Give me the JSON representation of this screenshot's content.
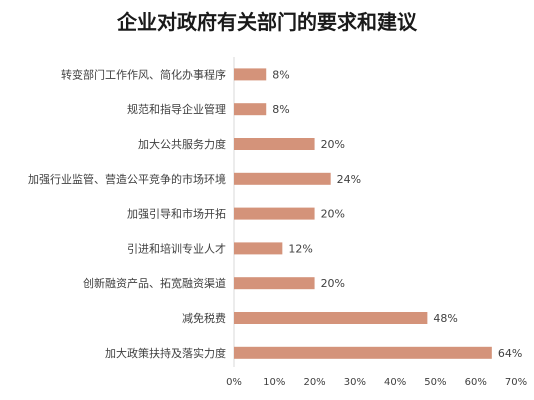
{
  "chart_data": {
    "type": "bar",
    "orientation": "horizontal",
    "title": "企业对政府有关部门的要求和建议",
    "categories": [
      "转变部门工作作风、简化办事程序",
      "规范和指导企业管理",
      "加大公共服务力度",
      "加强行业监管、营造公平竞争的市场环境",
      "加强引导和市场开拓",
      "引进和培训专业人才",
      "创新融资产品、拓宽融资渠道",
      "减免税费",
      "加大政策扶持及落实力度"
    ],
    "values": [
      8,
      8,
      20,
      24,
      20,
      12,
      20,
      48,
      64
    ],
    "data_labels": [
      "8%",
      "8%",
      "20%",
      "24%",
      "20%",
      "12%",
      "20%",
      "48%",
      "64%"
    ],
    "x_ticks": [
      0,
      10,
      20,
      30,
      40,
      50,
      60,
      70
    ],
    "x_tick_labels": [
      "0%",
      "10%",
      "20%",
      "30%",
      "40%",
      "50%",
      "60%",
      "70%"
    ],
    "xlim": [
      0,
      70
    ],
    "grid": false,
    "legend": "none",
    "bar_color": "#D4937A",
    "text_color": "#404040",
    "axis_color": "#D9D9D9"
  }
}
